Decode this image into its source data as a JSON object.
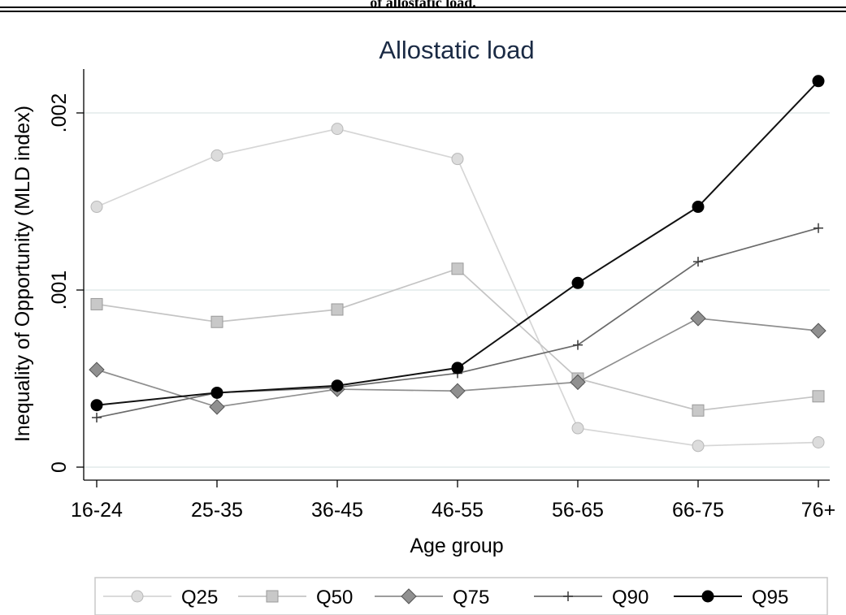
{
  "caption_fragment": "of allostatic load.",
  "chart_data": {
    "type": "line",
    "title": "Allostatic load",
    "xlabel": "Age group",
    "ylabel": "Inequality of Opportunity (MLD index)",
    "categories": [
      "16-24",
      "25-35",
      "36-45",
      "46-55",
      "56-65",
      "66-75",
      "76+"
    ],
    "yticks": [
      0,
      0.001,
      0.002
    ],
    "ytick_labels": [
      "0",
      ".001",
      ".002"
    ],
    "ylim": [
      0,
      0.0022
    ],
    "grid": true,
    "legend_position": "bottom",
    "series": [
      {
        "name": "Q25",
        "marker": "circle",
        "color": "#d6d6d6",
        "marker_fill": "#dcdcdc",
        "marker_stroke": "#b8b8b8",
        "values": [
          0.00147,
          0.00176,
          0.00191,
          0.00174,
          0.00022,
          0.00012,
          0.00014
        ]
      },
      {
        "name": "Q50",
        "marker": "square",
        "color": "#c4c4c4",
        "marker_fill": "#c8c8c8",
        "marker_stroke": "#9a9a9a",
        "values": [
          0.00092,
          0.00082,
          0.00089,
          0.00112,
          0.0005,
          0.00032,
          0.0004
        ]
      },
      {
        "name": "Q75",
        "marker": "diamond",
        "color": "#8f8f8f",
        "marker_fill": "#909090",
        "marker_stroke": "#555555",
        "values": [
          0.00055,
          0.00034,
          0.00044,
          0.00043,
          0.00048,
          0.00084,
          0.00077
        ]
      },
      {
        "name": "Q90",
        "marker": "plus",
        "color": "#6a6a6a",
        "marker_fill": "#3a3a3a",
        "marker_stroke": "#3a3a3a",
        "values": [
          0.00028,
          0.00042,
          0.00045,
          0.00053,
          0.00069,
          0.00116,
          0.00135
        ]
      },
      {
        "name": "Q95",
        "marker": "circle",
        "color": "#111111",
        "marker_fill": "#000000",
        "marker_stroke": "#000000",
        "values": [
          0.00035,
          0.00042,
          0.00046,
          0.00056,
          0.00104,
          0.00147,
          0.00218
        ]
      }
    ]
  }
}
